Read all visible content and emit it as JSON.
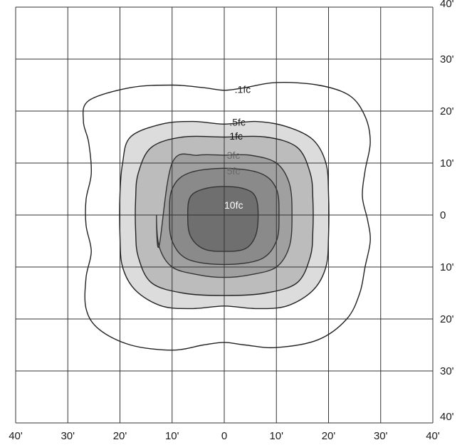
{
  "chart_data": {
    "type": "contour",
    "title": "",
    "xlabel": "",
    "ylabel": "",
    "xlim": [
      -40,
      40
    ],
    "ylim": [
      -40,
      40
    ],
    "grid": true,
    "x_tick_labels": [
      "40'",
      "30'",
      "20'",
      "10'",
      "0",
      "10'",
      "20'",
      "30'",
      "40'"
    ],
    "y_tick_labels": [
      "40'",
      "30'",
      "20'",
      "10'",
      "0",
      "10'",
      "20'",
      "30'",
      "40'"
    ],
    "contours": [
      {
        "label": ".1fc",
        "fill": "none",
        "stroke": "#222222",
        "label_pos": [
          2,
          23.5
        ],
        "label_color": "#222222",
        "points": [
          [
            -26,
            22
          ],
          [
            -18,
            24.5
          ],
          [
            -10,
            25
          ],
          [
            -4,
            24.5
          ],
          [
            0,
            24
          ],
          [
            4,
            24.5
          ],
          [
            10,
            25.5
          ],
          [
            18,
            25
          ],
          [
            24,
            23
          ],
          [
            27,
            19
          ],
          [
            28,
            14
          ],
          [
            27,
            8.5
          ],
          [
            26.5,
            3.5
          ],
          [
            27.5,
            -1
          ],
          [
            28,
            -5
          ],
          [
            27,
            -10
          ],
          [
            26,
            -15
          ],
          [
            23.5,
            -20
          ],
          [
            18,
            -24
          ],
          [
            10,
            -25.5
          ],
          [
            4,
            -25
          ],
          [
            0,
            -24.5
          ],
          [
            -4,
            -25
          ],
          [
            -10,
            -26
          ],
          [
            -18,
            -25
          ],
          [
            -24,
            -22
          ],
          [
            -26.5,
            -18
          ],
          [
            -26.5,
            -12
          ],
          [
            -25.5,
            -7
          ],
          [
            -26.5,
            -2
          ],
          [
            -26.5,
            3
          ],
          [
            -25.5,
            8
          ],
          [
            -26,
            14
          ],
          [
            -27,
            18
          ]
        ]
      },
      {
        "label": ".5fc",
        "fill": "#dcdcdc",
        "stroke": "#222222",
        "label_pos": [
          1,
          17.2
        ],
        "label_color": "#222222",
        "points": [
          [
            -18,
            15
          ],
          [
            -12,
            17.5
          ],
          [
            -6,
            18
          ],
          [
            0,
            17.5
          ],
          [
            6,
            18
          ],
          [
            12,
            17
          ],
          [
            17,
            14.5
          ],
          [
            19.5,
            10
          ],
          [
            20,
            4
          ],
          [
            20,
            -4
          ],
          [
            19.5,
            -10
          ],
          [
            17,
            -14.5
          ],
          [
            12,
            -17.5
          ],
          [
            6,
            -18
          ],
          [
            0,
            -17.5
          ],
          [
            -6,
            -18
          ],
          [
            -12,
            -17.5
          ],
          [
            -17,
            -14.5
          ],
          [
            -19.5,
            -10
          ],
          [
            -20,
            -4
          ],
          [
            -20,
            4
          ],
          [
            -19.5,
            10
          ]
        ]
      },
      {
        "label": "1fc",
        "fill": "#bcbcbc",
        "stroke": "#222222",
        "label_pos": [
          1,
          14.5
        ],
        "label_color": "#111111",
        "points": [
          [
            -14,
            13
          ],
          [
            -8,
            15
          ],
          [
            0,
            15
          ],
          [
            8,
            15
          ],
          [
            14,
            13
          ],
          [
            16.5,
            8
          ],
          [
            17,
            3
          ],
          [
            17,
            -3
          ],
          [
            16.5,
            -8
          ],
          [
            14,
            -13
          ],
          [
            8,
            -15
          ],
          [
            0,
            -15.5
          ],
          [
            -8,
            -15
          ],
          [
            -14,
            -13
          ],
          [
            -16.5,
            -8
          ],
          [
            -17,
            -3
          ],
          [
            -17,
            3
          ],
          [
            -16.5,
            8
          ]
        ]
      },
      {
        "label": "3fc",
        "fill": "#a0a0a0",
        "stroke": "#333333",
        "label_pos": [
          0.5,
          10.8
        ],
        "label_color": "#6a6a6a",
        "points": [
          [
            -10,
            10
          ],
          [
            -5,
            11.5
          ],
          [
            0,
            11.5
          ],
          [
            5,
            11.5
          ],
          [
            10,
            10
          ],
          [
            12.5,
            6
          ],
          [
            13,
            0
          ],
          [
            12.5,
            -6
          ],
          [
            10,
            -10
          ],
          [
            5,
            -11.5
          ],
          [
            0,
            -12
          ],
          [
            -5,
            -11.5
          ],
          [
            -10,
            -10
          ],
          [
            -12.5,
            -6
          ],
          [
            -13,
            0
          ],
          [
            -12.5,
            -6
          ]
        ]
      },
      {
        "label": "5fc",
        "fill": "#8a8a8a",
        "stroke": "#333333",
        "label_pos": [
          0.5,
          7.8
        ],
        "label_color": "#6a6a6a",
        "points": [
          [
            -7,
            8
          ],
          [
            0,
            9
          ],
          [
            7,
            8
          ],
          [
            10,
            5
          ],
          [
            10.5,
            0
          ],
          [
            10,
            -5
          ],
          [
            7,
            -8.5
          ],
          [
            0,
            -9.5
          ],
          [
            -7,
            -8.5
          ],
          [
            -10,
            -5
          ],
          [
            -10.5,
            0
          ],
          [
            -10,
            5
          ]
        ]
      },
      {
        "label": "10fc",
        "fill": "#6f6f6f",
        "stroke": "#333333",
        "label_pos": [
          0,
          1.2
        ],
        "label_color": "#ffffff",
        "points": [
          [
            -4,
            5
          ],
          [
            0,
            5.5
          ],
          [
            4,
            5
          ],
          [
            6,
            3.5
          ],
          [
            6.5,
            0
          ],
          [
            6,
            -4
          ],
          [
            4,
            -6.5
          ],
          [
            0,
            -7
          ],
          [
            -4,
            -6.5
          ],
          [
            -6.5,
            -4
          ],
          [
            -7,
            0
          ],
          [
            -6.5,
            3.5
          ]
        ]
      }
    ]
  }
}
